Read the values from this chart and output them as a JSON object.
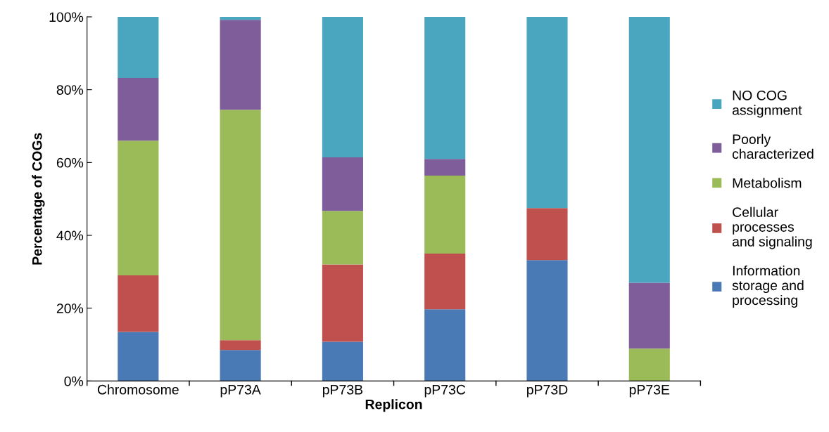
{
  "chart_data": {
    "type": "bar",
    "stacked": true,
    "xlabel": "Replicon",
    "ylabel": "Percentage of COGs",
    "categories": [
      "Chromosome",
      "pP73A",
      "pP73B",
      "pP73C",
      "pP73D",
      "pP73E"
    ],
    "series": [
      {
        "name": "Information\nstorage and\nprocessing",
        "color": "#4a7ab5",
        "values": [
          13.5,
          8.5,
          10.8,
          19.7,
          33.2,
          0
        ]
      },
      {
        "name": "Cellular\nprocesses\nand signaling",
        "color": "#c0504d",
        "values": [
          15.5,
          2.7,
          21.2,
          15.3,
          14.3,
          0
        ]
      },
      {
        "name": "Metabolism",
        "color": "#9bbb59",
        "values": [
          37,
          63.3,
          14.7,
          21.4,
          0,
          8.9
        ]
      },
      {
        "name": "Poorly\ncharacterized",
        "color": "#7f5c9a",
        "values": [
          17.2,
          24.7,
          14.7,
          4.6,
          0,
          18.1
        ]
      },
      {
        "name": "NO COG\nassignment",
        "color": "#4aa5bf",
        "values": [
          16.8,
          0.8,
          38.6,
          39,
          52.5,
          73
        ]
      }
    ],
    "ylim": [
      0,
      100
    ],
    "yticks": [
      {
        "value": 0,
        "label": "0%"
      },
      {
        "value": 20,
        "label": "20%"
      },
      {
        "value": 40,
        "label": "40%"
      },
      {
        "value": 60,
        "label": "60%"
      },
      {
        "value": 80,
        "label": "80%"
      },
      {
        "value": 100,
        "label": "100%"
      }
    ],
    "grid": false,
    "legend": "right"
  }
}
